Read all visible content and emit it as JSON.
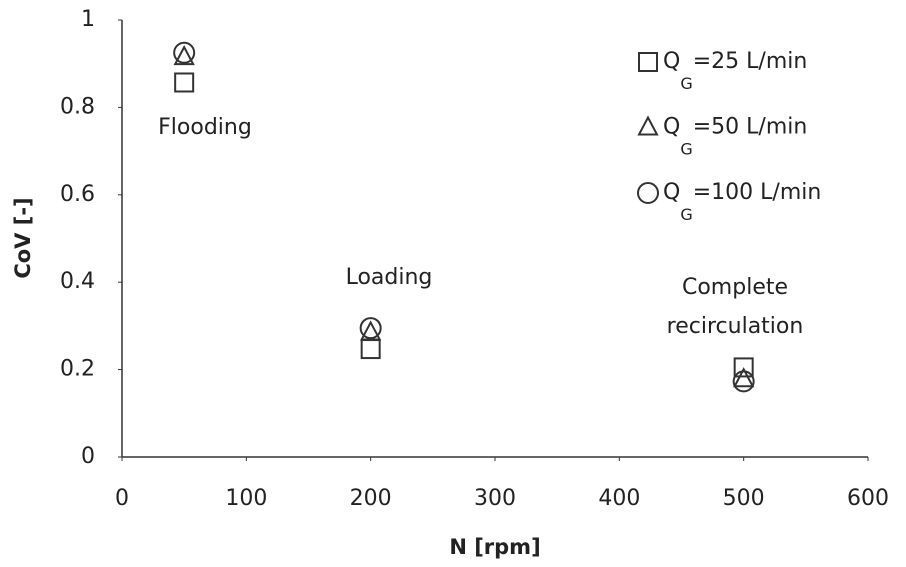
{
  "chart_data": {
    "type": "scatter",
    "x_label": "N [rpm]",
    "y_label": "CoV [-]",
    "x": [
      50,
      200,
      500
    ],
    "series": [
      {
        "name": "QG=25 L/min",
        "marker": "square",
        "color": "#333333",
        "values": [
          0.857,
          0.247,
          0.205
        ]
      },
      {
        "name": "QG=50 L/min",
        "marker": "triangle",
        "color": "#333333",
        "values": [
          0.915,
          0.285,
          0.178
        ]
      },
      {
        "name": "QG=100 L/min",
        "marker": "circle",
        "color": "#333333",
        "values": [
          0.925,
          0.295,
          0.173
        ]
      }
    ],
    "annotations": [
      "Flooding",
      "Loading",
      "Complete recirculation"
    ],
    "xlim": [
      0,
      600
    ],
    "xticks": [
      0,
      100,
      200,
      300,
      400,
      500,
      600
    ],
    "ylim": [
      0,
      1
    ],
    "yticks": [
      0,
      0.2,
      0.4,
      0.6,
      0.8,
      1
    ],
    "grid": false
  }
}
